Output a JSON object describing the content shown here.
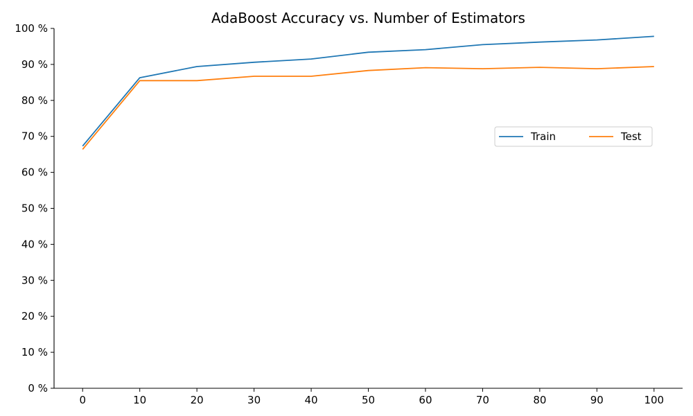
{
  "chart_data": {
    "type": "line",
    "title": "AdaBoost Accuracy vs. Number of Estimators",
    "xlabel": "",
    "ylabel": "",
    "x": [
      0,
      10,
      20,
      30,
      40,
      50,
      60,
      70,
      80,
      90,
      100
    ],
    "xlim": [
      -5,
      105
    ],
    "ylim": [
      0,
      100
    ],
    "x_ticks": [
      0,
      10,
      20,
      30,
      40,
      50,
      60,
      70,
      80,
      90,
      100
    ],
    "y_ticks": [
      0,
      10,
      20,
      30,
      40,
      50,
      60,
      70,
      80,
      90,
      100
    ],
    "y_tick_suffix": " %",
    "grid": false,
    "legend_position": "center-right",
    "series": [
      {
        "name": "Train",
        "color": "#1f77b4",
        "values": [
          67.3,
          86.3,
          89.4,
          90.6,
          91.5,
          93.4,
          94.1,
          95.5,
          96.2,
          96.8,
          97.8
        ]
      },
      {
        "name": "Test",
        "color": "#ff7f0e",
        "values": [
          66.4,
          85.5,
          85.5,
          86.7,
          86.7,
          88.3,
          89.1,
          88.8,
          89.2,
          88.8,
          89.4
        ]
      }
    ]
  }
}
